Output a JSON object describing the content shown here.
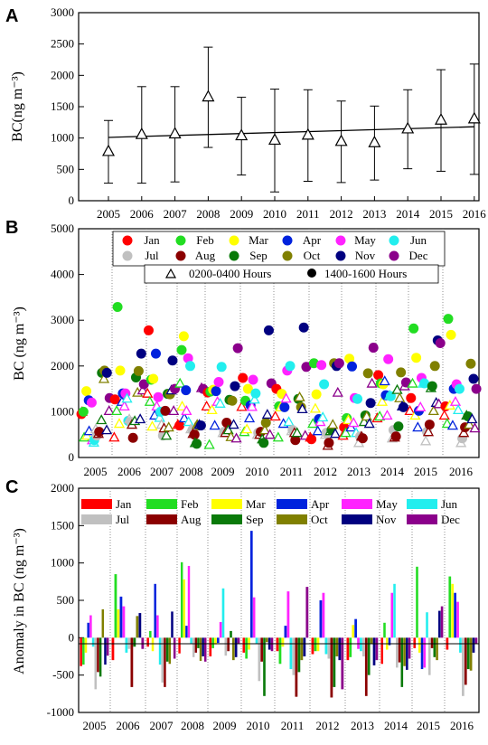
{
  "colors": {
    "Jan": "#ff0000",
    "Feb": "#22dd22",
    "Mar": "#ffff00",
    "Apr": "#0022dd",
    "May": "#ff22ff",
    "Jun": "#22eeee",
    "Jul": "#c0c0c0",
    "Aug": "#8b0000",
    "Sep": "#0a7a0a",
    "Oct": "#808000",
    "Nov": "#000080",
    "Dec": "#8b008b"
  },
  "chart_data": [
    {
      "panel": "A",
      "type": "scatter",
      "ylabel": "BC(ng m⁻³)",
      "categories": [
        "2005",
        "2006",
        "2007",
        "2008",
        "2009",
        "2010",
        "2011",
        "2012",
        "2013",
        "2014",
        "2015",
        "2016"
      ],
      "yticks": [
        "0",
        "500",
        "1000",
        "1500",
        "2000",
        "2500",
        "3000"
      ],
      "ylim": [
        0,
        3000
      ],
      "mean": [
        780,
        1050,
        1060,
        1650,
        1030,
        960,
        1040,
        940,
        920,
        1140,
        1280,
        1300
      ],
      "sd": [
        500,
        770,
        760,
        800,
        620,
        820,
        730,
        650,
        590,
        630,
        810,
        880
      ],
      "trend": [
        1010,
        1180
      ]
    },
    {
      "panel": "B",
      "type": "scatter",
      "ylabel": "BC (ng m⁻³)",
      "categories": [
        "2005",
        "2006",
        "2007",
        "2008",
        "2009",
        "2010",
        "2011",
        "2012",
        "2013",
        "2014",
        "2015",
        "2016"
      ],
      "yticks": [
        "0",
        "1000",
        "2000",
        "3000",
        "4000",
        "5000"
      ],
      "ylim": [
        0,
        5000
      ],
      "legend_months": [
        "Jan",
        "Feb",
        "Mar",
        "Apr",
        "May",
        "Jun",
        "Jul",
        "Aug",
        "Sep",
        "Oct",
        "Nov",
        "Dec"
      ],
      "legend_open": "0200-0400 Hours",
      "legend_filled": "1400-1600 Hours"
    },
    {
      "panel": "C",
      "type": "bar",
      "ylabel": "Anomaly in BC (ng m⁻³)",
      "categories": [
        "2005",
        "2006",
        "2007",
        "2008",
        "2009",
        "2010",
        "2011",
        "2012",
        "2013",
        "2014",
        "2015",
        "2016"
      ],
      "yticks": [
        "-1000",
        "-500",
        "0",
        "500",
        "1000",
        "1500",
        "2000"
      ],
      "ylim": [
        -1000,
        2000
      ],
      "legend_months": [
        "Jan",
        "Feb",
        "Mar",
        "Apr",
        "May",
        "Jun",
        "Jul",
        "Aug",
        "Sep",
        "Oct",
        "Nov",
        "Dec"
      ]
    }
  ],
  "labels": {
    "a": "A",
    "b": "B",
    "c": "C"
  }
}
